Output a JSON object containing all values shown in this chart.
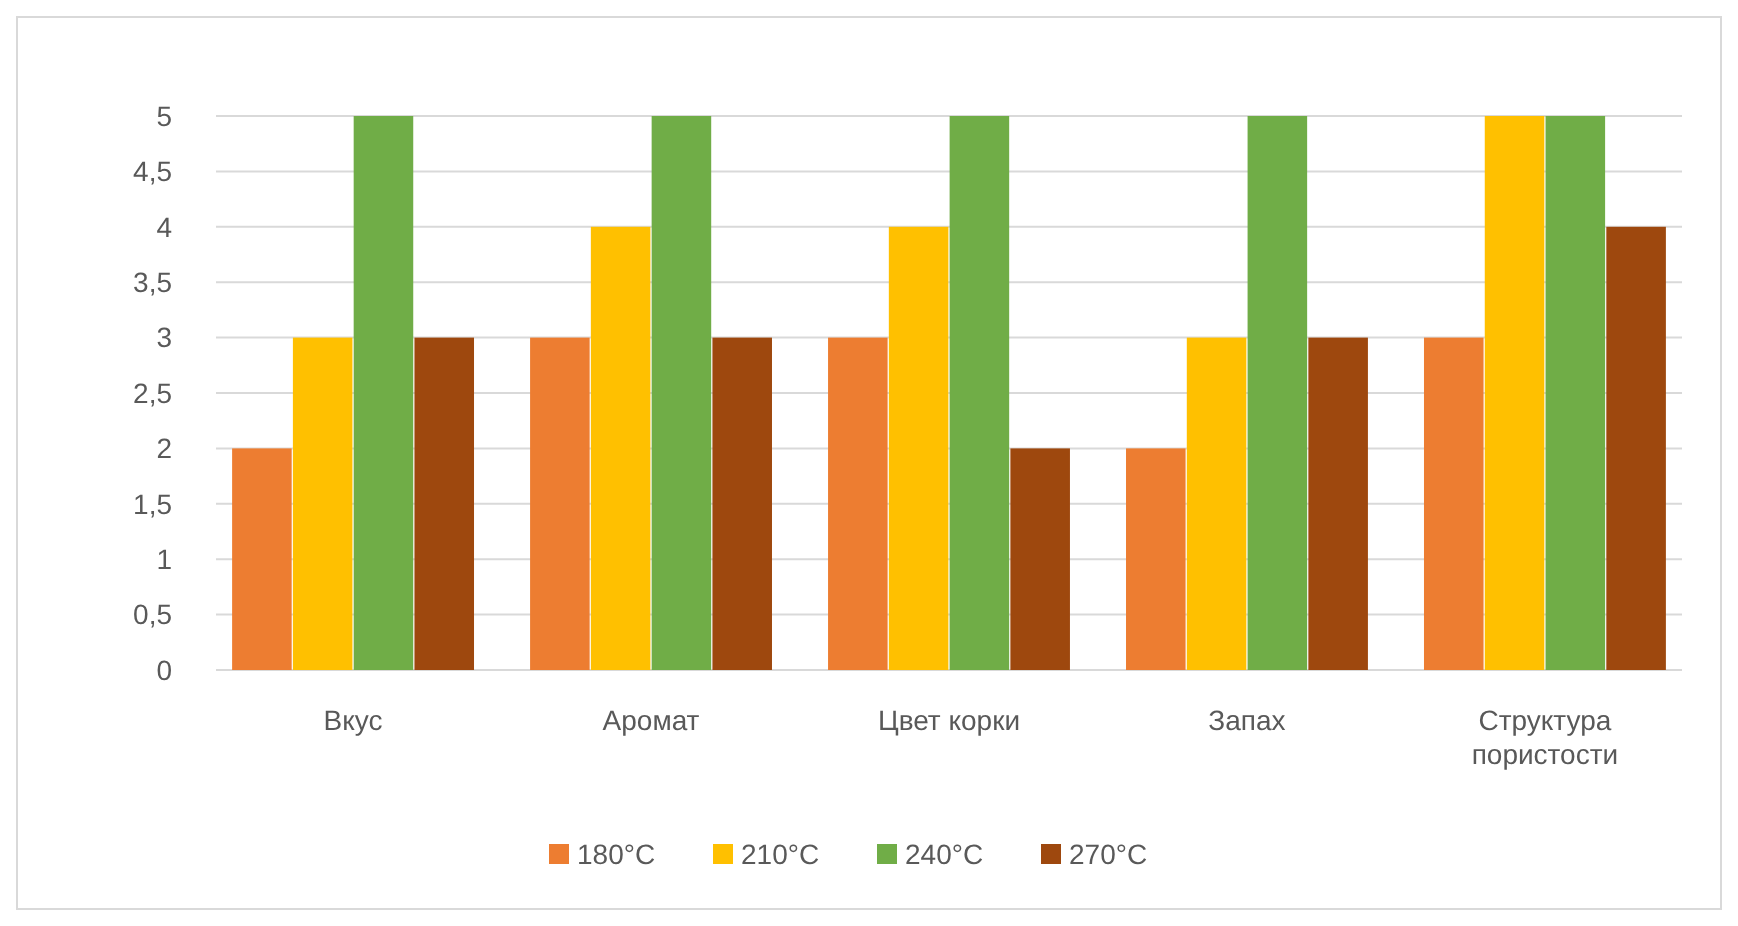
{
  "chart_data": {
    "type": "bar",
    "categories": [
      "Вкус",
      "Аромат",
      "Цвет корки",
      "Запах",
      "Структура пористости"
    ],
    "series": [
      {
        "name": "180°C",
        "color": "#ed7d31",
        "values": [
          2,
          3,
          3,
          2,
          3
        ]
      },
      {
        "name": "210°C",
        "color": "#ffc000",
        "values": [
          3,
          4,
          4,
          3,
          5
        ]
      },
      {
        "name": "240°C",
        "color": "#70ad47",
        "values": [
          5,
          5,
          5,
          5,
          5
        ]
      },
      {
        "name": "270°C",
        "color": "#9e480e",
        "values": [
          3,
          3,
          2,
          3,
          4
        ]
      }
    ],
    "ylim": [
      0,
      5
    ],
    "yticks": [
      0,
      {
        "value": 0.5,
        "label": "0,5"
      },
      1,
      {
        "value": 1.5,
        "label": "1,5"
      },
      2,
      {
        "value": 2.5,
        "label": "2,5"
      },
      3,
      {
        "value": 3.5,
        "label": "3,5"
      },
      4,
      {
        "value": 4.5,
        "label": "4,5"
      },
      5
    ],
    "grid": "y",
    "legend": "bottom"
  }
}
